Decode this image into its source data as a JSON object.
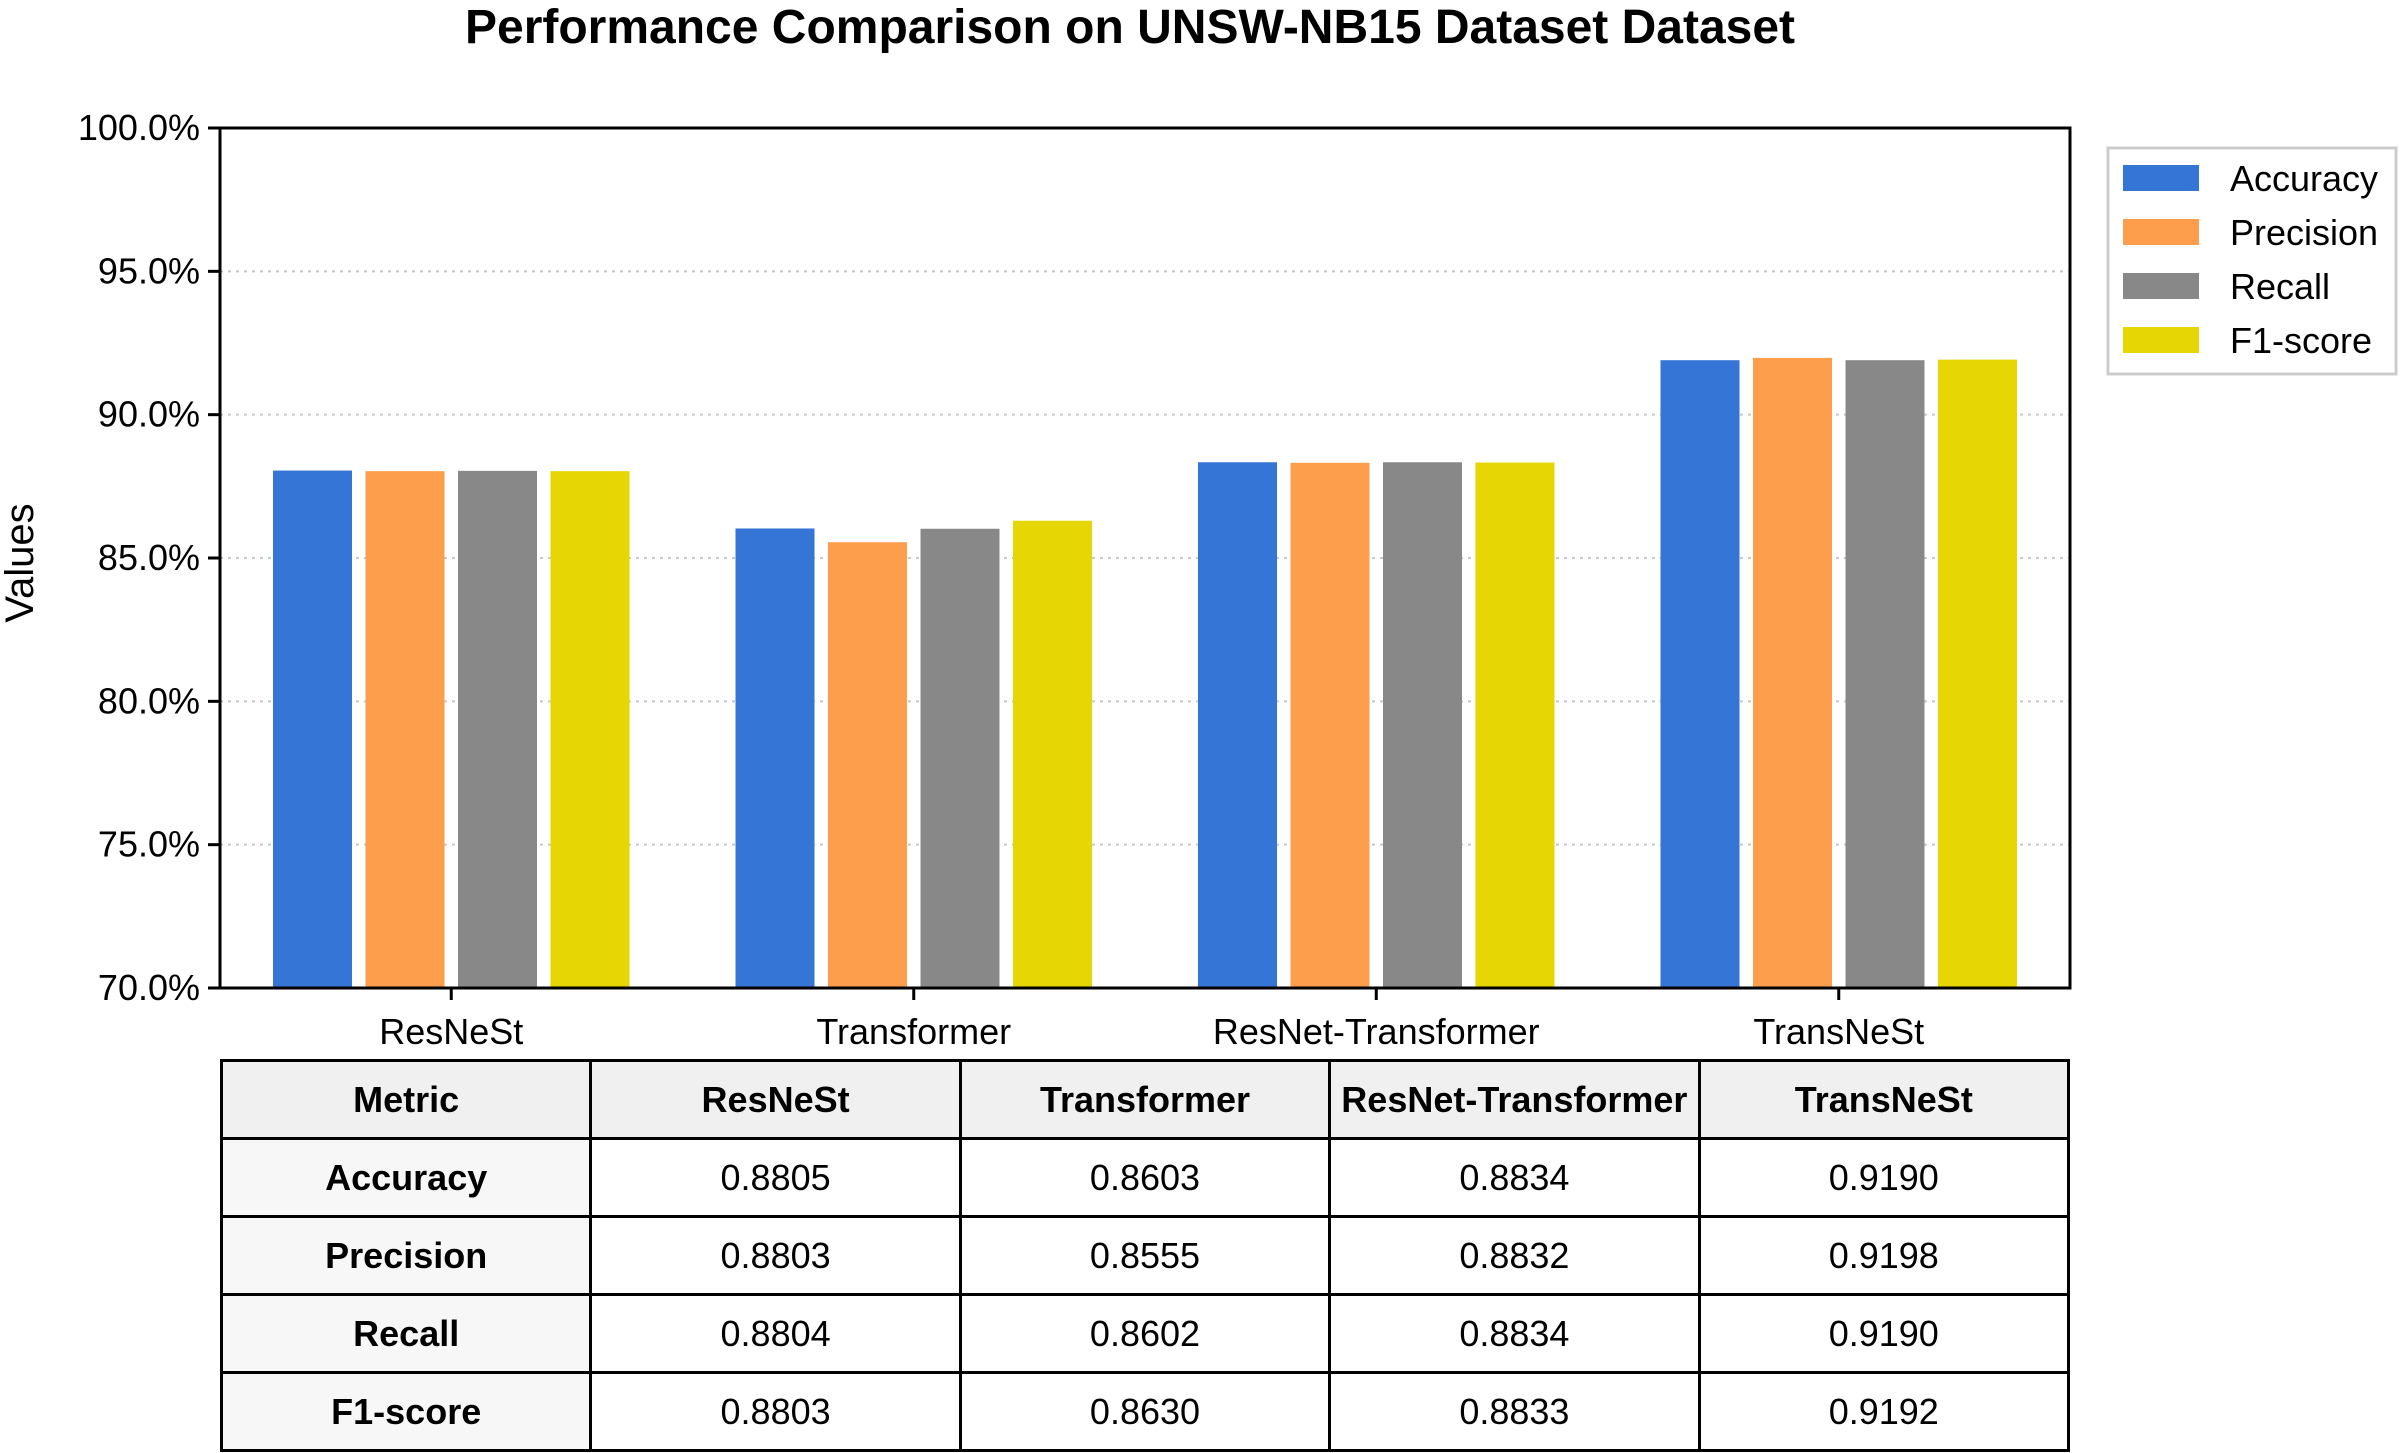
{
  "colors": {
    "Accuracy": "#3575d5",
    "Precision": "#fd9e4c",
    "Recall": "#888888",
    "F1-score": "#e6d603",
    "grid": "#c8c8c8"
  },
  "chart_data": {
    "type": "bar",
    "title": "Performance Comparison on UNSW-NB15 Dataset Dataset",
    "xlabel": "",
    "ylabel": "Values",
    "ylim": [
      0.7,
      1.0
    ],
    "yticks": [
      0.7,
      0.75,
      0.8,
      0.85,
      0.9,
      0.95,
      1.0
    ],
    "ytick_labels": [
      "70.0%",
      "75.0%",
      "80.0%",
      "85.0%",
      "90.0%",
      "95.0%",
      "100.0%"
    ],
    "grid": "horizontal dotted",
    "legend_position": "right, outside top",
    "categories": [
      "ResNeSt",
      "Transformer",
      "ResNet-Transformer",
      "TransNeSt"
    ],
    "series": [
      {
        "name": "Accuracy",
        "values": [
          0.8805,
          0.8603,
          0.8834,
          0.919
        ]
      },
      {
        "name": "Precision",
        "values": [
          0.8803,
          0.8555,
          0.8832,
          0.9198
        ]
      },
      {
        "name": "Recall",
        "values": [
          0.8804,
          0.8602,
          0.8834,
          0.919
        ]
      },
      {
        "name": "F1-score",
        "values": [
          0.8803,
          0.863,
          0.8833,
          0.9192
        ]
      }
    ]
  },
  "table": {
    "headers": [
      "Metric",
      "ResNeSt",
      "Transformer",
      "ResNet-Transformer",
      "TransNeSt"
    ],
    "rows": [
      [
        "Accuracy",
        "0.8805",
        "0.8603",
        "0.8834",
        "0.9190"
      ],
      [
        "Precision",
        "0.8803",
        "0.8555",
        "0.8832",
        "0.9198"
      ],
      [
        "Recall",
        "0.8804",
        "0.8602",
        "0.8834",
        "0.9190"
      ],
      [
        "F1-score",
        "0.8803",
        "0.8630",
        "0.8833",
        "0.9192"
      ]
    ]
  }
}
